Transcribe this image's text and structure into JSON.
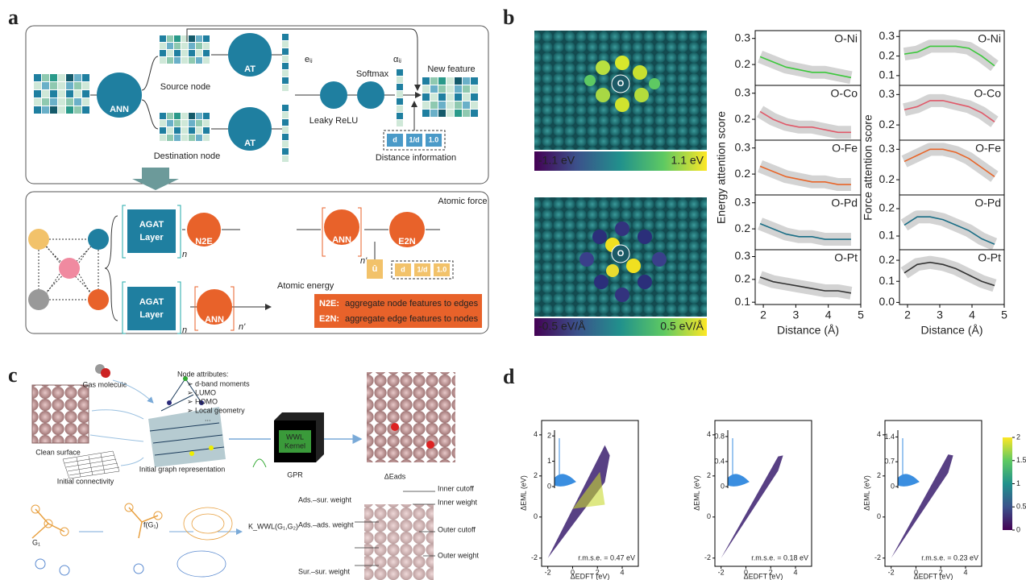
{
  "panel_a": {
    "label": "a",
    "top": {
      "ann": "ANN",
      "source_node": "Source node",
      "destination_node": "Destination node",
      "at_1": "AT",
      "at_2": "AT",
      "eij": "eᵢⱼ",
      "leaky_relu": "Leaky ReLU",
      "softmax": "Softmax",
      "aij": "αᵢⱼ",
      "new_feature": "New feature",
      "distance": [
        "d",
        "1/d",
        "1.0"
      ],
      "distance_info": "Distance information"
    },
    "bottom": {
      "agat_1": [
        "AGAT",
        "Layer"
      ],
      "n_1": "n",
      "n2e": "N2E",
      "ann_1": "ANN",
      "n_prime_1": "n'",
      "e2n": "E2N",
      "atomic_force": "Atomic force",
      "u": "û",
      "distance": [
        "d",
        "1/d",
        "1.0"
      ],
      "agat_2": [
        "AGAT",
        "Layer"
      ],
      "n_2": "n",
      "ann_2": "ANN",
      "n_prime_2": "n'",
      "atomic_energy": "Atomic energy",
      "legend": [
        {
          "key": "N2E:",
          "text": "aggregate node features to edges"
        },
        {
          "key": "E2N:",
          "text": "aggregate edge features to nodes"
        }
      ]
    }
  },
  "panel_b": {
    "label": "b",
    "heatmap_top": {
      "atom": "O",
      "cbar_min": "-1.1 eV",
      "cbar_max": "1.1 eV"
    },
    "heatmap_bottom": {
      "atom": "O",
      "cbar_min": "-0.5 eV/Å",
      "cbar_max": "0.5 eV/Å"
    },
    "energy": {
      "type": "line",
      "ylabel": "Energy attention score",
      "xlabel": "Distance (Å)",
      "x": [
        1.9,
        2.3,
        2.7,
        3.1,
        3.5,
        3.9,
        4.3,
        4.7
      ],
      "xlim": [
        1.75,
        5
      ],
      "xticks": [
        2,
        3,
        4,
        5
      ],
      "subplots": [
        {
          "name": "O-Ni",
          "color": "#3cc83c",
          "values": [
            0.23,
            0.21,
            0.19,
            0.18,
            0.17,
            0.17,
            0.16,
            0.15
          ],
          "ylim": [
            0.12,
            0.33
          ],
          "yticks": [
            0.2,
            0.3
          ]
        },
        {
          "name": "O-Co",
          "color": "#e05a6a",
          "values": [
            0.23,
            0.2,
            0.18,
            0.17,
            0.17,
            0.16,
            0.15,
            0.15
          ],
          "ylim": [
            0.12,
            0.33
          ],
          "yticks": [
            0.2,
            0.3
          ]
        },
        {
          "name": "O-Fe",
          "color": "#e8662a",
          "values": [
            0.23,
            0.21,
            0.19,
            0.18,
            0.17,
            0.17,
            0.16,
            0.16
          ],
          "ylim": [
            0.12,
            0.33
          ],
          "yticks": [
            0.2,
            0.3
          ]
        },
        {
          "name": "O-Pd",
          "color": "#1a6e86",
          "values": [
            0.22,
            0.2,
            0.18,
            0.17,
            0.17,
            0.16,
            0.16,
            0.16
          ],
          "ylim": [
            0.12,
            0.33
          ],
          "yticks": [
            0.2,
            0.3
          ]
        },
        {
          "name": "O-Pt",
          "color": "#333333",
          "values": [
            0.21,
            0.19,
            0.18,
            0.17,
            0.16,
            0.15,
            0.15,
            0.14
          ],
          "ylim": [
            0.09,
            0.33
          ],
          "yticks": [
            0.1,
            0.2,
            0.3
          ]
        }
      ]
    },
    "force": {
      "type": "line",
      "ylabel": "Force attention score",
      "xlabel": "Distance (Å)",
      "x": [
        1.9,
        2.3,
        2.7,
        3.1,
        3.5,
        3.9,
        4.3,
        4.7
      ],
      "xlim": [
        1.75,
        5
      ],
      "xticks": [
        2,
        3,
        4,
        5
      ],
      "subplots": [
        {
          "name": "O-Ni",
          "color": "#3cc83c",
          "values": [
            0.21,
            0.22,
            0.25,
            0.25,
            0.25,
            0.24,
            0.2,
            0.15
          ],
          "ylim": [
            0.05,
            0.33
          ],
          "yticks": [
            0.1,
            0.2,
            0.3
          ]
        },
        {
          "name": "O-Co",
          "color": "#e05a6a",
          "values": [
            0.25,
            0.26,
            0.28,
            0.28,
            0.27,
            0.26,
            0.24,
            0.21
          ],
          "ylim": [
            0.15,
            0.33
          ],
          "yticks": [
            0.2,
            0.3
          ]
        },
        {
          "name": "O-Fe",
          "color": "#e8662a",
          "values": [
            0.26,
            0.28,
            0.3,
            0.3,
            0.29,
            0.27,
            0.24,
            0.21
          ],
          "ylim": [
            0.15,
            0.33
          ],
          "yticks": [
            0.2,
            0.3
          ]
        },
        {
          "name": "O-Pd",
          "color": "#1a6e86",
          "values": [
            0.14,
            0.17,
            0.17,
            0.16,
            0.14,
            0.12,
            0.09,
            0.07
          ],
          "ylim": [
            0.05,
            0.25
          ],
          "yticks": [
            0.1,
            0.2
          ]
        },
        {
          "name": "O-Pt",
          "color": "#333333",
          "values": [
            0.14,
            0.18,
            0.19,
            0.18,
            0.16,
            0.13,
            0.1,
            0.08
          ],
          "ylim": [
            -0.01,
            0.25
          ],
          "yticks": [
            {
              "value": 0,
              "label": "0.0"
            },
            0.1,
            0.2
          ]
        }
      ]
    }
  },
  "panel_c": {
    "label": "c",
    "gas_molecule": "Gas molecule",
    "clean_surface": "Clean surface",
    "initial_connectivity": "Initial connectivity",
    "node_attributes": {
      "title": "Node attributes:",
      "items": [
        "➢ d-band moments",
        "➢ LUMO",
        "➢ HOMO",
        "➢ Local geometry",
        "..."
      ]
    },
    "initial_graph": "Initial graph representation",
    "kernel": [
      "WWL",
      "Kernel"
    ],
    "gpr": "GPR",
    "delta_e_ads": "ΔEads",
    "g1": "G₁",
    "f_g1": "f(G₁)",
    "k_wwl": "K_WWL(G₁,G₂)",
    "weights_left": [
      "Ads.–sur. weight",
      "Ads.–ads. weight",
      "Sur.–sur. weight"
    ],
    "weights_right": [
      "Inner cutoff",
      "Inner weight",
      "Outer cutoff",
      "Outer weight"
    ]
  },
  "panel_d": {
    "label": "d",
    "type": "scatter",
    "xlabel": "ΔEDFT (eV)",
    "ylabel": "ΔEML (eV)",
    "xlim": [
      -2.5,
      5.3
    ],
    "ylim": [
      -2.4,
      4.7
    ],
    "xticks": [
      -2,
      0,
      2,
      4
    ],
    "yticks": [
      -2,
      0,
      2,
      4
    ],
    "plots": [
      {
        "rmse": "r.m.s.e. = 0.47 eV",
        "inset_ylim": [
          0,
          2.1
        ],
        "inset_yticks": [
          0,
          1,
          2
        ]
      },
      {
        "rmse": "r.m.s.e. = 0.18 eV",
        "inset_ylim": [
          0,
          0.85
        ],
        "inset_yticks": [
          0,
          0.4,
          0.8
        ]
      },
      {
        "rmse": "r.m.s.e. = 0.23 eV",
        "inset_ylim": [
          0,
          1.5
        ],
        "inset_yticks": [
          0,
          0.7,
          1.4
        ]
      }
    ],
    "colorbar": {
      "lim": [
        0,
        2
      ],
      "ticks": [
        0,
        0.5,
        1,
        1.5,
        2
      ]
    }
  }
}
